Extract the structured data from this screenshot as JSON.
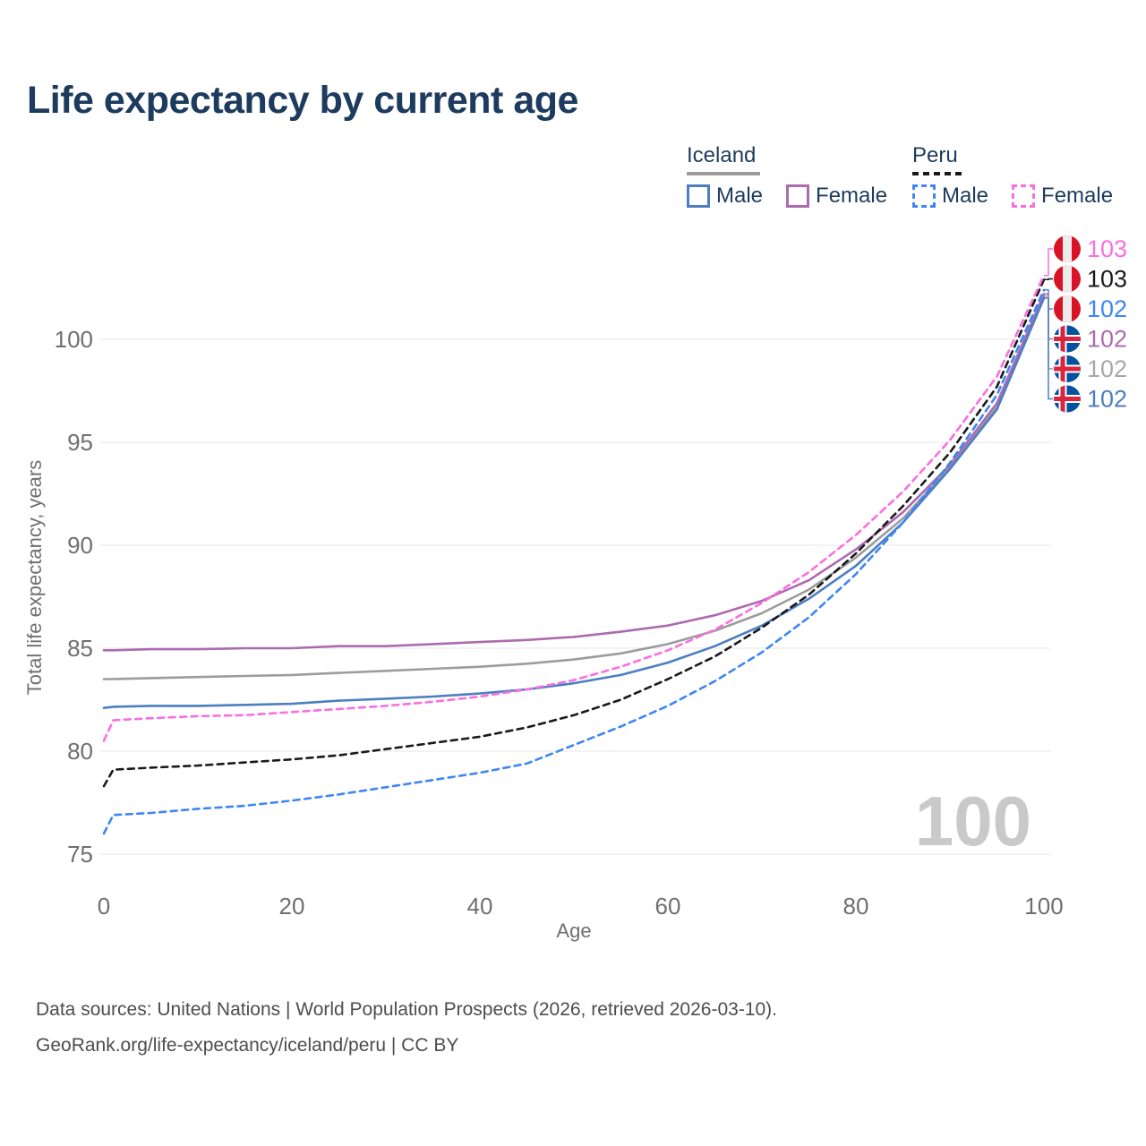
{
  "title": "Life expectancy by current age",
  "legend": {
    "groups": [
      {
        "country": "Iceland",
        "line_style": "solid",
        "items": [
          {
            "label": "Male",
            "series": "Iceland Male"
          },
          {
            "label": "Female",
            "series": "Iceland Female"
          }
        ]
      },
      {
        "country": "Peru",
        "line_style": "dashed",
        "items": [
          {
            "label": "Male",
            "series": "Peru Male"
          },
          {
            "label": "Female",
            "series": "Peru Female"
          }
        ]
      }
    ]
  },
  "chart_data": {
    "type": "line",
    "title": "Life expectancy by current age",
    "xlabel": "Age",
    "ylabel": "Total life expectancy, years",
    "x_ticks": [
      0,
      20,
      40,
      60,
      80,
      100
    ],
    "y_ticks": [
      75,
      80,
      85,
      90,
      95,
      100
    ],
    "xlim": [
      0,
      100
    ],
    "ylim": [
      75,
      103.5
    ],
    "grid": "horizontal-only",
    "legend_position": "top-right",
    "watermark": "100",
    "x": [
      0,
      1,
      5,
      10,
      15,
      20,
      25,
      30,
      35,
      40,
      45,
      50,
      55,
      60,
      65,
      70,
      75,
      80,
      85,
      90,
      95,
      100
    ],
    "series": [
      {
        "name": "Iceland",
        "country": "Iceland",
        "sex": "Both",
        "color": "#9c9c9c",
        "dashed": false,
        "values": [
          83.5,
          83.5,
          83.55,
          83.6,
          83.65,
          83.7,
          83.8,
          83.9,
          84.0,
          84.1,
          84.25,
          84.45,
          84.75,
          85.2,
          85.85,
          86.7,
          87.85,
          89.4,
          91.3,
          93.8,
          96.7,
          102.1
        ]
      },
      {
        "name": "Iceland Female",
        "country": "Iceland",
        "sex": "Female",
        "color": "#ad6baf",
        "dashed": false,
        "values": [
          84.9,
          84.9,
          84.95,
          84.95,
          85.0,
          85.0,
          85.1,
          85.1,
          85.2,
          85.3,
          85.4,
          85.55,
          85.8,
          86.1,
          86.6,
          87.3,
          88.3,
          89.8,
          91.6,
          93.9,
          96.9,
          102.2
        ]
      },
      {
        "name": "Iceland Male",
        "country": "Iceland",
        "sex": "Male",
        "color": "#4b7fc1",
        "dashed": false,
        "values": [
          82.1,
          82.15,
          82.2,
          82.2,
          82.25,
          82.3,
          82.45,
          82.55,
          82.65,
          82.8,
          83.0,
          83.3,
          83.7,
          84.3,
          85.1,
          86.1,
          87.4,
          89.0,
          91.1,
          93.7,
          96.6,
          102.0
        ]
      },
      {
        "name": "Peru",
        "country": "Peru",
        "sex": "Both",
        "color": "#1a1a1a",
        "dashed": true,
        "values": [
          78.3,
          79.1,
          79.2,
          79.3,
          79.45,
          79.6,
          79.8,
          80.1,
          80.4,
          80.7,
          81.15,
          81.75,
          82.5,
          83.5,
          84.6,
          86.0,
          87.6,
          89.6,
          91.9,
          94.5,
          97.7,
          102.9
        ]
      },
      {
        "name": "Peru Female",
        "country": "Peru",
        "sex": "Female",
        "color": "#fa6ee0",
        "dashed": true,
        "values": [
          80.5,
          81.5,
          81.6,
          81.7,
          81.75,
          81.9,
          82.05,
          82.2,
          82.4,
          82.65,
          83.0,
          83.45,
          84.1,
          84.9,
          85.9,
          87.2,
          88.7,
          90.5,
          92.6,
          95.1,
          98.2,
          103.1
        ]
      },
      {
        "name": "Peru Male",
        "country": "Peru",
        "sex": "Male",
        "color": "#3e86f5",
        "dashed": true,
        "values": [
          76.0,
          76.9,
          77.0,
          77.2,
          77.35,
          77.6,
          77.9,
          78.25,
          78.6,
          78.95,
          79.4,
          80.3,
          81.2,
          82.2,
          83.4,
          84.8,
          86.5,
          88.6,
          91.1,
          94.0,
          97.3,
          102.4
        ]
      }
    ],
    "end_labels": [
      {
        "text": "103",
        "flag": "peru",
        "series": "Peru Female",
        "color": "#fa6ee0"
      },
      {
        "text": "103",
        "flag": "peru",
        "series": "Peru",
        "color": "#1a1a1a"
      },
      {
        "text": "102",
        "flag": "peru",
        "series": "Peru Male",
        "color": "#3e86f5"
      },
      {
        "text": "102",
        "flag": "iceland",
        "series": "Iceland Female",
        "color": "#ad6baf"
      },
      {
        "text": "102",
        "flag": "iceland",
        "series": "Iceland",
        "color": "#a8a8a8"
      },
      {
        "text": "102",
        "flag": "iceland",
        "series": "Iceland Male",
        "color": "#4b7fc1"
      }
    ],
    "flag_colors": {
      "peru_red": "#d91326",
      "peru_white": "#ececec",
      "iceland_blue": "#0352a0",
      "iceland_red": "#d7263d",
      "iceland_white": "#ffffff"
    }
  },
  "footer": {
    "line1": "Data sources: United Nations | World Population Prospects (2026, retrieved 2026-03-10).",
    "line2": "GeoRank.org/life-expectancy/iceland/peru | CC BY"
  }
}
